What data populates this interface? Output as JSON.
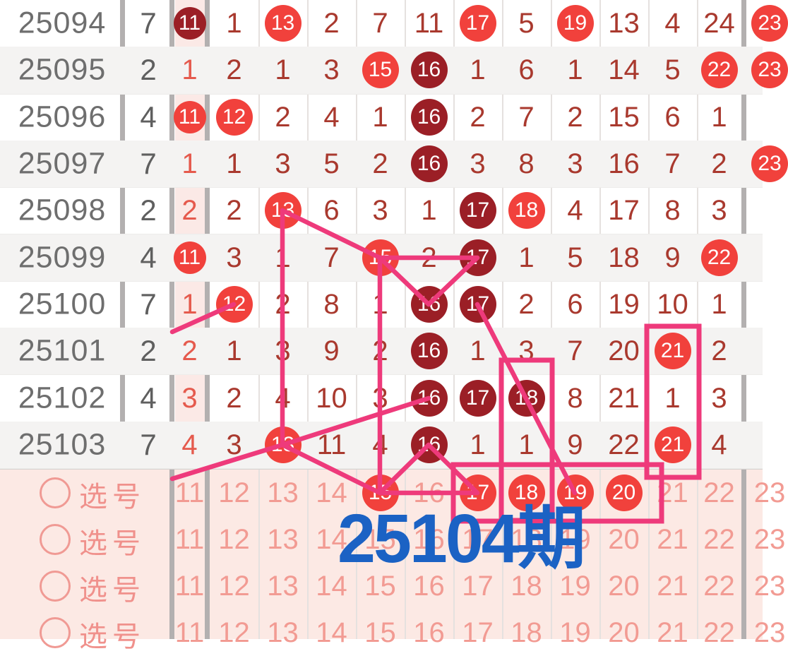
{
  "legend": {
    "next_period_label": "25104期"
  },
  "columns": [
    "11",
    "12",
    "13",
    "14",
    "15",
    "16",
    "17",
    "18",
    "19",
    "20",
    "21",
    "22",
    "23"
  ],
  "rows": [
    {
      "period": "25094",
      "stat": "7",
      "cells": [
        {
          "v": "11",
          "t": "dark"
        },
        {
          "v": "1",
          "t": "miss"
        },
        {
          "v": "13",
          "t": "bright"
        },
        {
          "v": "2",
          "t": "miss"
        },
        {
          "v": "7",
          "t": "miss"
        },
        {
          "v": "11",
          "t": "miss"
        },
        {
          "v": "17",
          "t": "bright"
        },
        {
          "v": "5",
          "t": "miss"
        },
        {
          "v": "19",
          "t": "bright"
        },
        {
          "v": "13",
          "t": "miss"
        },
        {
          "v": "4",
          "t": "miss"
        },
        {
          "v": "24",
          "t": "miss"
        },
        {
          "v": "23",
          "t": "bright"
        }
      ]
    },
    {
      "period": "25095",
      "stat": "2",
      "cells": [
        {
          "v": "1",
          "t": "miss"
        },
        {
          "v": "2",
          "t": "miss"
        },
        {
          "v": "1",
          "t": "miss"
        },
        {
          "v": "3",
          "t": "miss"
        },
        {
          "v": "15",
          "t": "bright"
        },
        {
          "v": "16",
          "t": "dark"
        },
        {
          "v": "1",
          "t": "miss"
        },
        {
          "v": "6",
          "t": "miss"
        },
        {
          "v": "1",
          "t": "miss"
        },
        {
          "v": "14",
          "t": "miss"
        },
        {
          "v": "5",
          "t": "miss"
        },
        {
          "v": "22",
          "t": "bright"
        },
        {
          "v": "23",
          "t": "bright"
        }
      ]
    },
    {
      "period": "25096",
      "stat": "4",
      "cells": [
        {
          "v": "11",
          "t": "bright"
        },
        {
          "v": "12",
          "t": "bright"
        },
        {
          "v": "2",
          "t": "miss"
        },
        {
          "v": "4",
          "t": "miss"
        },
        {
          "v": "1",
          "t": "miss"
        },
        {
          "v": "16",
          "t": "dark"
        },
        {
          "v": "2",
          "t": "miss"
        },
        {
          "v": "7",
          "t": "miss"
        },
        {
          "v": "2",
          "t": "miss"
        },
        {
          "v": "15",
          "t": "miss"
        },
        {
          "v": "6",
          "t": "miss"
        },
        {
          "v": "1",
          "t": "miss"
        },
        {
          "v": "",
          "t": "none"
        }
      ]
    },
    {
      "period": "25097",
      "stat": "7",
      "cells": [
        {
          "v": "1",
          "t": "miss"
        },
        {
          "v": "1",
          "t": "miss"
        },
        {
          "v": "3",
          "t": "miss"
        },
        {
          "v": "5",
          "t": "miss"
        },
        {
          "v": "2",
          "t": "miss"
        },
        {
          "v": "16",
          "t": "dark"
        },
        {
          "v": "3",
          "t": "miss"
        },
        {
          "v": "8",
          "t": "miss"
        },
        {
          "v": "3",
          "t": "miss"
        },
        {
          "v": "16",
          "t": "miss"
        },
        {
          "v": "7",
          "t": "miss"
        },
        {
          "v": "2",
          "t": "miss"
        },
        {
          "v": "23",
          "t": "bright"
        }
      ]
    },
    {
      "period": "25098",
      "stat": "2",
      "cells": [
        {
          "v": "2",
          "t": "miss"
        },
        {
          "v": "2",
          "t": "miss"
        },
        {
          "v": "13",
          "t": "bright"
        },
        {
          "v": "6",
          "t": "miss"
        },
        {
          "v": "3",
          "t": "miss"
        },
        {
          "v": "1",
          "t": "miss"
        },
        {
          "v": "17",
          "t": "dark"
        },
        {
          "v": "18",
          "t": "bright"
        },
        {
          "v": "4",
          "t": "miss"
        },
        {
          "v": "17",
          "t": "miss"
        },
        {
          "v": "8",
          "t": "miss"
        },
        {
          "v": "3",
          "t": "miss"
        },
        {
          "v": "",
          "t": "none"
        }
      ]
    },
    {
      "period": "25099",
      "stat": "4",
      "cells": [
        {
          "v": "11",
          "t": "bright"
        },
        {
          "v": "3",
          "t": "miss"
        },
        {
          "v": "1",
          "t": "miss"
        },
        {
          "v": "7",
          "t": "miss"
        },
        {
          "v": "15",
          "t": "bright"
        },
        {
          "v": "2",
          "t": "miss"
        },
        {
          "v": "17",
          "t": "dark"
        },
        {
          "v": "1",
          "t": "miss"
        },
        {
          "v": "5",
          "t": "miss"
        },
        {
          "v": "18",
          "t": "miss"
        },
        {
          "v": "9",
          "t": "miss"
        },
        {
          "v": "22",
          "t": "bright"
        },
        {
          "v": "",
          "t": "none"
        }
      ]
    },
    {
      "period": "25100",
      "stat": "7",
      "cells": [
        {
          "v": "1",
          "t": "miss"
        },
        {
          "v": "12",
          "t": "bright"
        },
        {
          "v": "2",
          "t": "miss"
        },
        {
          "v": "8",
          "t": "miss"
        },
        {
          "v": "1",
          "t": "miss"
        },
        {
          "v": "16",
          "t": "dark"
        },
        {
          "v": "17",
          "t": "dark"
        },
        {
          "v": "2",
          "t": "miss"
        },
        {
          "v": "6",
          "t": "miss"
        },
        {
          "v": "19",
          "t": "miss"
        },
        {
          "v": "10",
          "t": "miss"
        },
        {
          "v": "1",
          "t": "miss"
        },
        {
          "v": "",
          "t": "none"
        }
      ]
    },
    {
      "period": "25101",
      "stat": "2",
      "cells": [
        {
          "v": "2",
          "t": "miss"
        },
        {
          "v": "1",
          "t": "miss"
        },
        {
          "v": "3",
          "t": "miss"
        },
        {
          "v": "9",
          "t": "miss"
        },
        {
          "v": "2",
          "t": "miss"
        },
        {
          "v": "16",
          "t": "dark"
        },
        {
          "v": "1",
          "t": "miss"
        },
        {
          "v": "3",
          "t": "miss"
        },
        {
          "v": "7",
          "t": "miss"
        },
        {
          "v": "20",
          "t": "miss"
        },
        {
          "v": "21",
          "t": "bright"
        },
        {
          "v": "2",
          "t": "miss"
        },
        {
          "v": "",
          "t": "none"
        }
      ]
    },
    {
      "period": "25102",
      "stat": "4",
      "cells": [
        {
          "v": "3",
          "t": "miss"
        },
        {
          "v": "2",
          "t": "miss"
        },
        {
          "v": "4",
          "t": "miss"
        },
        {
          "v": "10",
          "t": "miss"
        },
        {
          "v": "3",
          "t": "miss"
        },
        {
          "v": "16",
          "t": "dark"
        },
        {
          "v": "17",
          "t": "dark"
        },
        {
          "v": "18",
          "t": "dark"
        },
        {
          "v": "8",
          "t": "miss"
        },
        {
          "v": "21",
          "t": "miss"
        },
        {
          "v": "1",
          "t": "miss"
        },
        {
          "v": "3",
          "t": "miss"
        },
        {
          "v": "",
          "t": "none"
        }
      ]
    },
    {
      "period": "25103",
      "stat": "7",
      "cells": [
        {
          "v": "4",
          "t": "miss"
        },
        {
          "v": "3",
          "t": "miss"
        },
        {
          "v": "13",
          "t": "bright"
        },
        {
          "v": "11",
          "t": "miss"
        },
        {
          "v": "4",
          "t": "miss"
        },
        {
          "v": "16",
          "t": "dark"
        },
        {
          "v": "1",
          "t": "miss"
        },
        {
          "v": "1",
          "t": "miss"
        },
        {
          "v": "9",
          "t": "miss"
        },
        {
          "v": "22",
          "t": "miss"
        },
        {
          "v": "21",
          "t": "bright"
        },
        {
          "v": "4",
          "t": "miss"
        },
        {
          "v": "",
          "t": "none"
        }
      ]
    }
  ],
  "selection_rows": [
    {
      "label": "选号",
      "circled": [
        "15",
        "17",
        "18",
        "19",
        "20"
      ]
    },
    {
      "label": "选号",
      "circled": []
    },
    {
      "label": "选号",
      "circled": []
    },
    {
      "label": "选号",
      "circled": []
    }
  ],
  "colors": {
    "bright_ball": "#f1413c",
    "dark_ball": "#9b1f26",
    "miss_text": "#a9392e",
    "highlight_col_text": "#e55a4d",
    "highlight_col_bg": "#fbe9e6",
    "magenta_annotation": "#ee3a7b",
    "next_period_blue": "#1b62c4",
    "selection_bg": "#fce9e4",
    "selection_text": "#f29b93",
    "stripe": "#f4f3f2"
  },
  "overlay": {
    "lines": [
      [
        400,
        298,
        538,
        365
      ],
      [
        538,
        365,
        676,
        365
      ],
      [
        538,
        365,
        607,
        431
      ],
      [
        607,
        431,
        676,
        365
      ],
      [
        400,
        298,
        400,
        630
      ],
      [
        538,
        365,
        538,
        698
      ],
      [
        331,
        431,
        244,
        470
      ],
      [
        400,
        630,
        244,
        678
      ],
      [
        400,
        630,
        538,
        698
      ],
      [
        400,
        630,
        607,
        564
      ],
      [
        607,
        630,
        538,
        698
      ],
      [
        607,
        630,
        676,
        698
      ],
      [
        538,
        698,
        676,
        698
      ],
      [
        676,
        431,
        814,
        698
      ]
    ],
    "rects": [
      [
        916,
        462,
        74,
        214
      ],
      [
        710,
        510,
        72,
        227
      ],
      [
        642,
        658,
        295,
        80
      ]
    ]
  }
}
